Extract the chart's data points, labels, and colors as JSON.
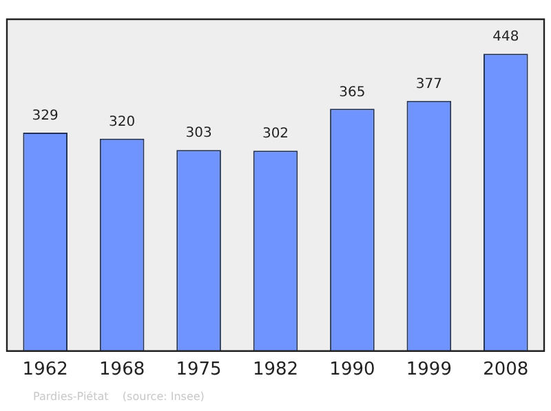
{
  "chart_data": {
    "type": "bar",
    "categories": [
      "1962",
      "1968",
      "1975",
      "1982",
      "1990",
      "1999",
      "2008"
    ],
    "values": [
      329,
      320,
      303,
      302,
      365,
      377,
      448
    ],
    "color": "#7094ff",
    "data_labels": true,
    "grid": false,
    "legend": false,
    "tick_labels": "x",
    "annotations": [
      "Pardies-Piétat    (source: Insee)"
    ]
  }
}
